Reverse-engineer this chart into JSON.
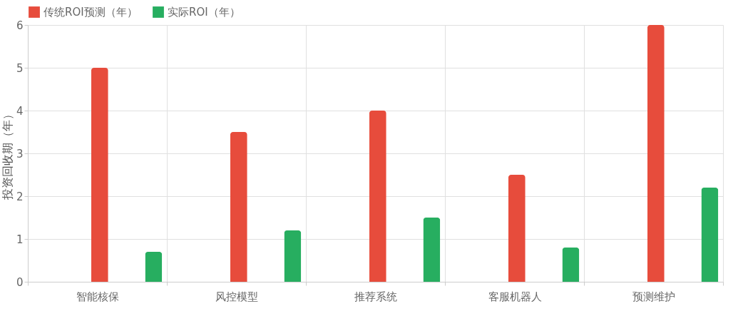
{
  "chart_data": {
    "type": "bar",
    "ylabel": "投资回收期（年）",
    "categories": [
      "智能核保",
      "风控模型",
      "推荐系统",
      "客服机器人",
      "预测维护"
    ],
    "series": [
      {
        "name": "传统ROI预测（年）",
        "color": "#e74c3c",
        "values": [
          5,
          3.5,
          4,
          2.5,
          6
        ]
      },
      {
        "name": "实际ROI（年）",
        "color": "#27ae60",
        "values": [
          0.7,
          1.2,
          1.5,
          0.8,
          2.2
        ]
      }
    ],
    "ylim": [
      0,
      6
    ],
    "yticks": [
      0,
      1,
      2,
      3,
      4,
      5,
      6
    ],
    "grid": true,
    "legend": "top"
  }
}
